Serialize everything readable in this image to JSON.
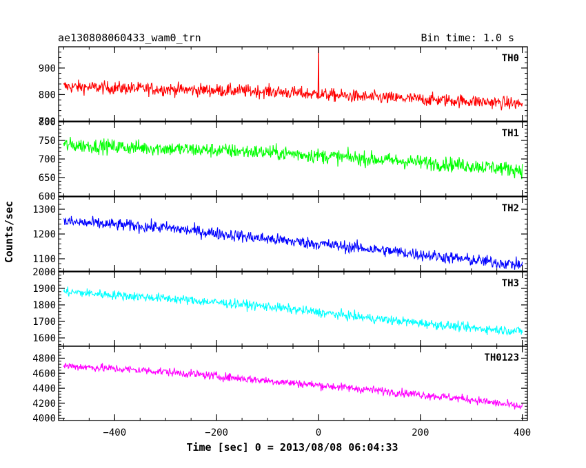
{
  "chart_data": {
    "type": "line",
    "title_left": "ae130808060433_wam0_trn",
    "title_right": "Bin time: 1.0 s",
    "xlabel": "Time [sec] 0 = 2013/08/08 06:04:33",
    "ylabel": "Counts/sec",
    "xlim": [
      -510,
      410
    ],
    "x_ticks": [
      -400,
      -200,
      0,
      200,
      400
    ],
    "x_tick_labels": [
      "−400",
      "−200",
      "0",
      "200",
      "400"
    ],
    "grid": false,
    "panels": [
      {
        "name": "TH0",
        "color": "#ff0000",
        "ylim": [
          700,
          980
        ],
        "y_ticks": [
          700,
          800,
          900
        ],
        "y_tick_labels": [
          "700",
          "800",
          "900"
        ],
        "trend": {
          "x": [
            -500,
            -300,
            -100,
            100,
            300,
            400
          ],
          "y": [
            830,
            820,
            812,
            790,
            775,
            765
          ]
        },
        "noise_amplitude": 42,
        "spikes": [
          {
            "x": 0,
            "y": 1000
          }
        ]
      },
      {
        "name": "TH1",
        "color": "#00ff00",
        "ylim": [
          600,
          800
        ],
        "y_ticks": [
          600,
          650,
          700,
          750,
          800
        ],
        "y_tick_labels": [
          "600",
          "650",
          "700",
          "750",
          "800"
        ],
        "trend": {
          "x": [
            -500,
            -300,
            -100,
            100,
            300,
            400
          ],
          "y": [
            738,
            728,
            718,
            700,
            682,
            670
          ]
        },
        "noise_amplitude": 34,
        "spikes": []
      },
      {
        "name": "TH2",
        "color": "#0000ff",
        "ylim": [
          1050,
          1350
        ],
        "y_ticks": [
          1100,
          1200,
          1300
        ],
        "y_tick_labels": [
          "1100",
          "1200",
          "1300"
        ],
        "trend": {
          "x": [
            -500,
            -300,
            -100,
            100,
            300,
            400
          ],
          "y": [
            1250,
            1225,
            1180,
            1140,
            1095,
            1075
          ]
        },
        "noise_amplitude": 42,
        "spikes": []
      },
      {
        "name": "TH3",
        "color": "#00ffff",
        "ylim": [
          1550,
          2000
        ],
        "y_ticks": [
          1600,
          1700,
          1800,
          1900,
          2000
        ],
        "y_tick_labels": [
          "1600",
          "1700",
          "1800",
          "1900",
          "2000"
        ],
        "trend": {
          "x": [
            -500,
            -300,
            -100,
            100,
            300,
            400
          ],
          "y": [
            1880,
            1840,
            1790,
            1720,
            1660,
            1640
          ]
        },
        "noise_amplitude": 48,
        "spikes": []
      },
      {
        "name": "TH0123",
        "color": "#ff00ff",
        "ylim": [
          3970,
          4960
        ],
        "y_ticks": [
          4000,
          4200,
          4400,
          4600,
          4800
        ],
        "y_tick_labels": [
          "4000",
          "4200",
          "4400",
          "4600",
          "4800"
        ],
        "trend": {
          "x": [
            -500,
            -300,
            -100,
            100,
            300,
            400
          ],
          "y": [
            4700,
            4620,
            4500,
            4380,
            4250,
            4150
          ]
        },
        "noise_amplitude": 95,
        "spikes": []
      }
    ]
  }
}
